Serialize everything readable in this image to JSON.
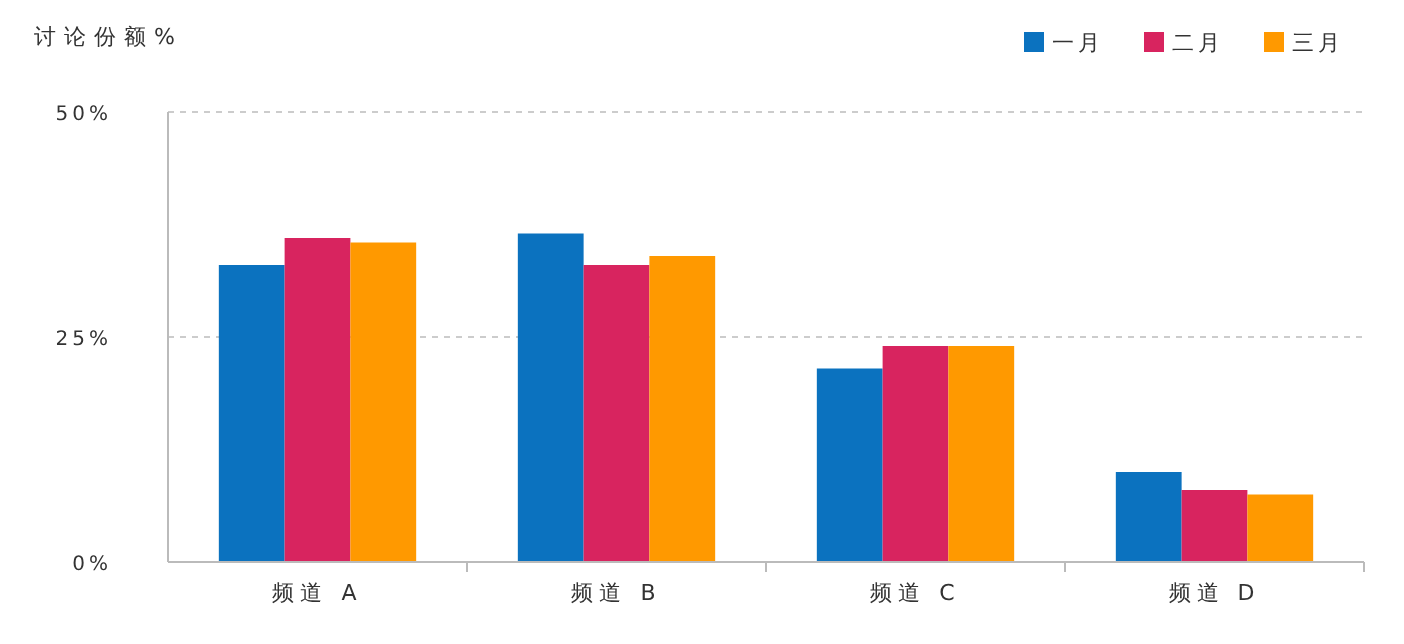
{
  "chart_data": {
    "type": "bar",
    "title": "讨论份额%",
    "categories": [
      "频道 A",
      "频道 B",
      "频道 C",
      "频道 D"
    ],
    "series": [
      {
        "name": "一月",
        "color": "#0b72bf",
        "values": [
          33,
          36.5,
          21.5,
          10
        ]
      },
      {
        "name": "二月",
        "color": "#d8245f",
        "values": [
          36,
          33,
          24,
          8
        ]
      },
      {
        "name": "三月",
        "color": "#ff9900",
        "values": [
          35.5,
          34,
          24,
          7.5
        ]
      }
    ],
    "ylim": [
      0,
      50
    ],
    "yticks": [
      {
        "value": 0,
        "label": "0%"
      },
      {
        "value": 25,
        "label": "25%"
      },
      {
        "value": 50,
        "label": "50%"
      }
    ],
    "grid": "y",
    "legend": "top right"
  }
}
